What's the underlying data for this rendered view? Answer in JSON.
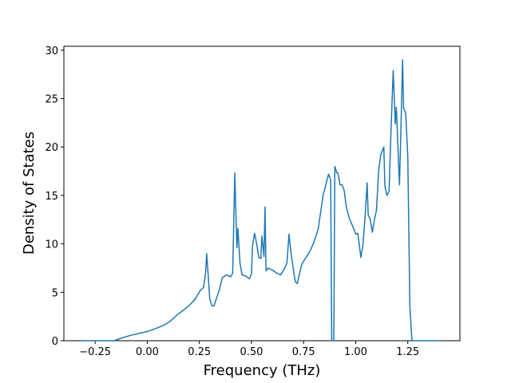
{
  "chart_data": {
    "type": "line",
    "xlabel": "Frequency (THz)",
    "ylabel": "Density of States",
    "x": [
      -0.31,
      -0.16,
      -0.12,
      -0.08,
      -0.04,
      0.0,
      0.04,
      0.08,
      0.11,
      0.14,
      0.17,
      0.2,
      0.23,
      0.255,
      0.27,
      0.28,
      0.285,
      0.295,
      0.3,
      0.31,
      0.32,
      0.345,
      0.36,
      0.38,
      0.4,
      0.41,
      0.42,
      0.43,
      0.435,
      0.445,
      0.455,
      0.47,
      0.49,
      0.5,
      0.505,
      0.515,
      0.525,
      0.535,
      0.545,
      0.55,
      0.56,
      0.565,
      0.57,
      0.58,
      0.6,
      0.62,
      0.64,
      0.655,
      0.67,
      0.68,
      0.69,
      0.7,
      0.71,
      0.72,
      0.74,
      0.75,
      0.78,
      0.8,
      0.82,
      0.83,
      0.845,
      0.85,
      0.86,
      0.87,
      0.88,
      0.885,
      0.895,
      0.9,
      0.91,
      0.915,
      0.925,
      0.935,
      0.945,
      0.955,
      0.97,
      0.99,
      1.0,
      1.01,
      1.025,
      1.035,
      1.045,
      1.055,
      1.06,
      1.07,
      1.08,
      1.09,
      1.1,
      1.11,
      1.12,
      1.135,
      1.14,
      1.15,
      1.16,
      1.17,
      1.18,
      1.19,
      1.195,
      1.2,
      1.21,
      1.215,
      1.225,
      1.23,
      1.24,
      1.25,
      1.26,
      1.27,
      1.41
    ],
    "y": [
      0,
      0,
      0.3,
      0.55,
      0.75,
      0.95,
      1.25,
      1.6,
      2.0,
      2.6,
      3.1,
      3.6,
      4.3,
      5.2,
      5.5,
      7.0,
      9.0,
      6.0,
      4.3,
      3.6,
      3.6,
      5.2,
      6.5,
      6.8,
      6.6,
      7.0,
      17.3,
      9.6,
      11.6,
      8.0,
      6.8,
      6.7,
      6.4,
      6.9,
      9.8,
      11.1,
      10.0,
      8.6,
      8.5,
      10.8,
      8.7,
      13.8,
      7.2,
      7.5,
      7.3,
      7.0,
      6.8,
      7.3,
      8.0,
      11.0,
      9.0,
      7.5,
      6.1,
      5.9,
      7.8,
      8.2,
      9.2,
      10.2,
      11.5,
      13.0,
      15.2,
      15.5,
      16.4,
      17.2,
      16.6,
      0,
      0,
      18.0,
      17.3,
      17.3,
      16.1,
      16.1,
      15.5,
      13.8,
      12.6,
      11.6,
      11.0,
      11.1,
      8.6,
      9.9,
      12.8,
      16.3,
      13.0,
      12.5,
      11.2,
      12.5,
      13.5,
      17.5,
      19.2,
      20.0,
      16.0,
      15.0,
      15.4,
      22.0,
      27.9,
      22.4,
      24.1,
      21.5,
      16.1,
      20.0,
      29.0,
      24.0,
      23.5,
      19.0,
      3.5,
      0,
      0
    ],
    "color": "#1f77b4",
    "xlim": [
      -0.4,
      1.5
    ],
    "ylim": [
      0,
      30.4
    ],
    "xticks": [
      {
        "value": -0.25,
        "label": "−0.25"
      },
      {
        "value": 0,
        "label": "0.00"
      },
      {
        "value": 0.25,
        "label": "0.25"
      },
      {
        "value": 0.5,
        "label": "0.50"
      },
      {
        "value": 0.75,
        "label": "0.75"
      },
      {
        "value": 1,
        "label": "1.00"
      },
      {
        "value": 1.25,
        "label": "1.25"
      }
    ],
    "yticks": [
      0,
      5,
      10,
      15,
      20,
      25,
      30
    ]
  }
}
